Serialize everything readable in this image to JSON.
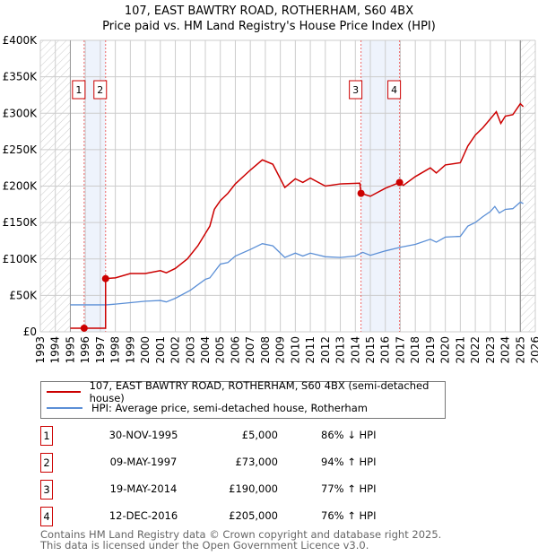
{
  "chart_data": {
    "type": "line",
    "title": "107, EAST BAWTRY ROAD, ROTHERHAM, S60 4BX",
    "subtitle": "Price paid vs. HM Land Registry's House Price Index (HPI)",
    "xlim": [
      1993,
      2026
    ],
    "ylim": [
      0,
      400000
    ],
    "x_ticks": [
      "1993",
      "1994",
      "1995",
      "1996",
      "1997",
      "1998",
      "1999",
      "2000",
      "2001",
      "2002",
      "2003",
      "2004",
      "2005",
      "2006",
      "2007",
      "2008",
      "2009",
      "2010",
      "2011",
      "2012",
      "2013",
      "2014",
      "2015",
      "2016",
      "2017",
      "2018",
      "2019",
      "2020",
      "2021",
      "2022",
      "2023",
      "2024",
      "2025",
      "2026"
    ],
    "y_ticks": [
      {
        "v": 0,
        "label": "£0"
      },
      {
        "v": 50000,
        "label": "£50K"
      },
      {
        "v": 100000,
        "label": "£100K"
      },
      {
        "v": 150000,
        "label": "£150K"
      },
      {
        "v": 200000,
        "label": "£200K"
      },
      {
        "v": 250000,
        "label": "£250K"
      },
      {
        "v": 300000,
        "label": "£300K"
      },
      {
        "v": 350000,
        "label": "£350K"
      },
      {
        "v": 400000,
        "label": "£400K"
      }
    ],
    "grid": true,
    "hatched_ranges": [
      [
        1993,
        1995
      ],
      [
        2025,
        2026
      ]
    ],
    "shaded_ranges": [
      [
        1995.92,
        1997.35
      ],
      [
        2014.38,
        2016.95
      ]
    ],
    "series": [
      {
        "name": "107, EAST BAWTRY ROAD, ROTHERHAM, S60 4BX (semi-detached house)",
        "color": "#cc0000",
        "x": [
          1995,
          1997.35,
          1997.35,
          1998,
          1999,
          2000,
          2001,
          2001.4,
          2002,
          2002.8,
          2003.5,
          2004.3,
          2004.6,
          2005,
          2005.5,
          2006,
          2007,
          2007.8,
          2008.5,
          2009.3,
          2010,
          2010.5,
          2011,
          2012,
          2013,
          2014.3,
          2014.38,
          2015,
          2016,
          2016.95,
          2017.2,
          2018,
          2019,
          2019.4,
          2020,
          2021,
          2021.5,
          2022,
          2022.5,
          2023.4,
          2023.7,
          2024,
          2024.5,
          2025,
          2025.2
        ],
        "y": [
          5000,
          5000,
          73000,
          74000,
          80000,
          80000,
          84000,
          81000,
          87000,
          100000,
          118000,
          145000,
          168000,
          180000,
          190000,
          203000,
          222000,
          236000,
          230000,
          198000,
          210000,
          205000,
          211000,
          200000,
          203000,
          204000,
          190000,
          186000,
          197000,
          205000,
          201000,
          213000,
          225000,
          218000,
          229000,
          232000,
          255000,
          270000,
          280000,
          302000,
          286000,
          296000,
          298000,
          313000,
          309000
        ]
      },
      {
        "name": "HPI: Average price, semi-detached house, Rotherham",
        "color": "#5b8fd6",
        "x": [
          1995,
          1997.4,
          1998,
          1999,
          2000,
          2001,
          2001.4,
          2002,
          2003,
          2004,
          2004.3,
          2005,
          2005.5,
          2006,
          2007,
          2007.8,
          2008.5,
          2009.3,
          2010,
          2010.5,
          2011,
          2012,
          2013,
          2014,
          2014.5,
          2015,
          2016,
          2017,
          2018,
          2019,
          2019.4,
          2020,
          2021,
          2021.5,
          2022,
          2022.5,
          2023,
          2023.3,
          2023.6,
          2024,
          2024.5,
          2025,
          2025.2
        ],
        "y": [
          37000,
          37000,
          38000,
          40000,
          42000,
          43000,
          41000,
          46000,
          57000,
          72000,
          74000,
          93000,
          95000,
          104000,
          113000,
          121000,
          118000,
          102000,
          108000,
          104000,
          108000,
          103000,
          102000,
          104000,
          109000,
          105000,
          111000,
          116000,
          120000,
          127000,
          123000,
          130000,
          131000,
          145000,
          150000,
          158000,
          165000,
          172000,
          163000,
          168000,
          169000,
          178000,
          176000
        ]
      }
    ],
    "sales": [
      {
        "num": "1",
        "x": 1995.92,
        "y": 5000,
        "date": "30-NOV-1995",
        "price": "£5,000",
        "hpi": "86% ↓ HPI"
      },
      {
        "num": "2",
        "x": 1997.35,
        "y": 73000,
        "date": "09-MAY-1997",
        "price": "£73,000",
        "hpi": "94% ↑ HPI"
      },
      {
        "num": "3",
        "x": 2014.38,
        "y": 190000,
        "date": "19-MAY-2014",
        "price": "£190,000",
        "hpi": "77% ↑ HPI"
      },
      {
        "num": "4",
        "x": 2016.95,
        "y": 205000,
        "date": "12-DEC-2016",
        "price": "£205,000",
        "hpi": "76% ↑ HPI"
      }
    ],
    "legend_placement": "below"
  },
  "footer": {
    "line1": "Contains HM Land Registry data © Crown copyright and database right 2025.",
    "line2": "This data is licensed under the Open Government Licence v3.0."
  }
}
